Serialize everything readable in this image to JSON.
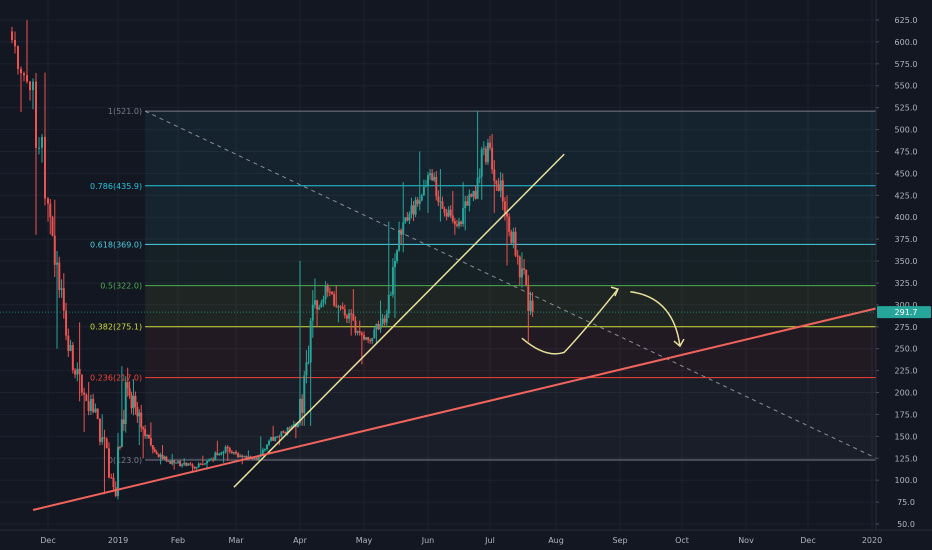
{
  "chart_data": {
    "type": "candlestick",
    "title": "",
    "colors": {
      "background": "#131722",
      "grid": "#1e2230",
      "up": "#26a69a",
      "down": "#ef5350",
      "axis_text": "#b2b5be",
      "price_tag": "#26a69a",
      "support_line": "#f0645d",
      "trend_line": "#e8e19c",
      "dashed_line": "#8a8e99",
      "forecast": "#e8e19c"
    },
    "x_axis": {
      "labels": [
        "Dec",
        "2019",
        "Feb",
        "Mar",
        "Apr",
        "May",
        "Jun",
        "Jul",
        "Aug",
        "Sep",
        "Oct",
        "Nov",
        "Dec",
        "2020"
      ]
    },
    "y_axis": {
      "range": [
        40,
        638
      ],
      "ticks": [
        50,
        75,
        100,
        125,
        150,
        175,
        200,
        225,
        250,
        275,
        300,
        325,
        350,
        375,
        400,
        425,
        450,
        475,
        500,
        525,
        550,
        575,
        600,
        625
      ],
      "tick_labels": [
        "50.0",
        "75.0",
        "100.0",
        "125.0",
        "150.0",
        "175.0",
        "200.0",
        "225.0",
        "250.0",
        "275.0",
        "300.0",
        "325.0",
        "350.0",
        "375.0",
        "400.0",
        "425.0",
        "450.0",
        "475.0",
        "500.0",
        "525.0",
        "550.0",
        "575.0",
        "600.0",
        "625.0"
      ]
    },
    "current_price": {
      "value": 291.7,
      "label": "291.7"
    },
    "fibonacci": {
      "start_date": "2019-01-15",
      "end_date": "2020-01-05",
      "levels": [
        {
          "label": "1(521.0)",
          "value": 521.0,
          "color": "#787b86"
        },
        {
          "label": "0.786(435.9)",
          "value": 435.9,
          "color": "#26c6da"
        },
        {
          "label": "0.618(369.0)",
          "value": 369.0,
          "color": "#4dd0e1"
        },
        {
          "label": "0.5(322.0)",
          "value": 322.0,
          "color": "#4caf50"
        },
        {
          "label": "0.382(275.1)",
          "value": 275.1,
          "color": "#cddc39"
        },
        {
          "label": "0.236(217.0)",
          "value": 217.0,
          "color": "#f44336"
        },
        {
          "label": "0(123.0)",
          "value": 123.0,
          "color": "#787b86"
        }
      ]
    },
    "drawings": {
      "support_line": {
        "from": {
          "date": "2018-11-26",
          "value": 66
        },
        "to": {
          "date": "2020-01-05",
          "value": 297
        }
      },
      "trend_line": {
        "from": {
          "date": "2019-02-28",
          "value": 92
        },
        "to": {
          "date": "2019-08-05",
          "value": 472
        }
      },
      "dashed_line": {
        "from": {
          "date": "2019-01-15",
          "value": 521
        },
        "to": {
          "date": "2020-01-05",
          "value": 123
        }
      },
      "forecast_path": [
        {
          "date": "2019-07-16",
          "value": 262
        },
        {
          "date": "2019-07-27",
          "value": 248
        },
        {
          "date": "2019-08-14",
          "value": 268
        },
        {
          "date": "2019-08-31",
          "value": 318
        },
        {
          "date": "2019-09-06",
          "value": 315
        },
        {
          "date": "2019-09-22",
          "value": 288
        },
        {
          "date": "2019-09-30",
          "value": 253
        }
      ]
    },
    "candles_weekly": [
      {
        "date": "2018-11-19",
        "open": 612,
        "high": 625,
        "low": 520,
        "close": 545
      },
      {
        "date": "2018-11-26",
        "open": 545,
        "high": 565,
        "low": 380,
        "close": 400
      },
      {
        "date": "2018-12-03",
        "open": 400,
        "high": 420,
        "low": 250,
        "close": 265
      },
      {
        "date": "2018-12-10",
        "open": 265,
        "high": 280,
        "low": 190,
        "close": 200
      },
      {
        "date": "2018-12-17",
        "open": 200,
        "high": 212,
        "low": 155,
        "close": 170
      },
      {
        "date": "2018-12-24",
        "open": 170,
        "high": 175,
        "low": 84,
        "close": 92
      },
      {
        "date": "2018-12-31",
        "open": 92,
        "high": 230,
        "low": 78,
        "close": 205
      },
      {
        "date": "2019-01-07",
        "open": 205,
        "high": 215,
        "low": 140,
        "close": 160
      },
      {
        "date": "2019-01-14",
        "open": 160,
        "high": 166,
        "low": 125,
        "close": 132
      },
      {
        "date": "2019-01-21",
        "open": 132,
        "high": 140,
        "low": 118,
        "close": 122
      },
      {
        "date": "2019-01-28",
        "open": 122,
        "high": 130,
        "low": 112,
        "close": 118
      },
      {
        "date": "2019-02-04",
        "open": 118,
        "high": 125,
        "low": 110,
        "close": 115
      },
      {
        "date": "2019-02-11",
        "open": 115,
        "high": 128,
        "low": 112,
        "close": 124
      },
      {
        "date": "2019-02-18",
        "open": 124,
        "high": 145,
        "low": 120,
        "close": 138
      },
      {
        "date": "2019-02-25",
        "open": 138,
        "high": 140,
        "low": 122,
        "close": 128
      },
      {
        "date": "2019-03-04",
        "open": 128,
        "high": 134,
        "low": 118,
        "close": 125
      },
      {
        "date": "2019-03-11",
        "open": 125,
        "high": 150,
        "low": 122,
        "close": 145
      },
      {
        "date": "2019-03-18",
        "open": 145,
        "high": 162,
        "low": 140,
        "close": 155
      },
      {
        "date": "2019-03-25",
        "open": 155,
        "high": 168,
        "low": 148,
        "close": 165
      },
      {
        "date": "2019-04-01",
        "open": 165,
        "high": 350,
        "low": 162,
        "close": 300
      },
      {
        "date": "2019-04-08",
        "open": 300,
        "high": 330,
        "low": 275,
        "close": 315
      },
      {
        "date": "2019-04-15",
        "open": 315,
        "high": 322,
        "low": 280,
        "close": 295
      },
      {
        "date": "2019-04-22",
        "open": 295,
        "high": 318,
        "low": 265,
        "close": 270
      },
      {
        "date": "2019-04-29",
        "open": 270,
        "high": 282,
        "low": 232,
        "close": 262
      },
      {
        "date": "2019-05-06",
        "open": 262,
        "high": 305,
        "low": 255,
        "close": 290
      },
      {
        "date": "2019-05-13",
        "open": 290,
        "high": 395,
        "low": 285,
        "close": 380
      },
      {
        "date": "2019-05-20",
        "open": 380,
        "high": 440,
        "low": 360,
        "close": 420
      },
      {
        "date": "2019-05-27",
        "open": 420,
        "high": 475,
        "low": 405,
        "close": 450
      },
      {
        "date": "2019-06-03",
        "open": 450,
        "high": 455,
        "low": 395,
        "close": 405
      },
      {
        "date": "2019-06-10",
        "open": 405,
        "high": 430,
        "low": 380,
        "close": 395
      },
      {
        "date": "2019-06-17",
        "open": 395,
        "high": 440,
        "low": 385,
        "close": 430
      },
      {
        "date": "2019-06-24",
        "open": 430,
        "high": 521,
        "low": 420,
        "close": 485
      },
      {
        "date": "2019-07-01",
        "open": 485,
        "high": 495,
        "low": 405,
        "close": 418
      },
      {
        "date": "2019-07-08",
        "open": 418,
        "high": 425,
        "low": 345,
        "close": 355
      },
      {
        "date": "2019-07-15",
        "open": 355,
        "high": 360,
        "low": 258,
        "close": 292
      }
    ]
  }
}
